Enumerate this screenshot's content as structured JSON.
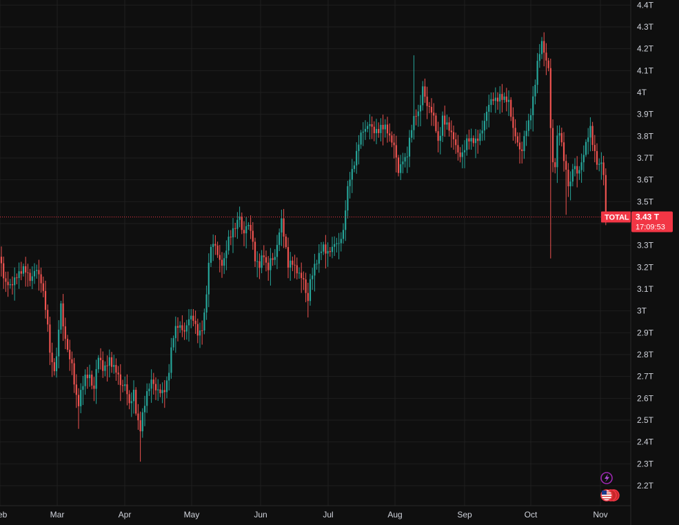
{
  "chart_data": {
    "type": "candlestick",
    "symbol": "TOTAL",
    "last_price_label": "3.43 T",
    "last_price_value": 3.43,
    "countdown": "17:09:53",
    "ylim": [
      2.15,
      4.45
    ],
    "yticks": [
      "2.2T",
      "2.3T",
      "2.4T",
      "2.5T",
      "2.6T",
      "2.7T",
      "2.8T",
      "2.9T",
      "3T",
      "3.1T",
      "3.2T",
      "3.3T",
      "3.4T",
      "3.5T",
      "3.6T",
      "3.7T",
      "3.8T",
      "3.9T",
      "4T",
      "4.1T",
      "4.2T",
      "4.3T",
      "4.4T"
    ],
    "ytick_values": [
      2.2,
      2.3,
      2.4,
      2.5,
      2.6,
      2.7,
      2.8,
      2.9,
      3.0,
      3.1,
      3.2,
      3.3,
      3.4,
      3.5,
      3.6,
      3.7,
      3.8,
      3.9,
      4.0,
      4.1,
      4.2,
      4.3,
      4.4
    ],
    "xticks": [
      "Feb",
      "Mar",
      "Apr",
      "May",
      "Jun",
      "Jul",
      "Aug",
      "Sep",
      "Oct",
      "Nov"
    ],
    "xtick_positions": [
      0.0,
      83.0,
      181.0,
      278.0,
      378.0,
      476.0,
      573.0,
      674.0,
      770.0,
      871.0
    ],
    "grid": true,
    "colors": {
      "up": "#26a69a",
      "down": "#ef5350",
      "grid": "#1f1f1f",
      "axis_text": "#d1d4dc",
      "label_bg": "#f23645",
      "event_purple": "#9c27b0"
    },
    "path": [
      [
        0,
        3.28
      ],
      [
        6,
        3.12
      ],
      [
        14,
        3.1
      ],
      [
        24,
        3.18
      ],
      [
        34,
        3.18
      ],
      [
        44,
        3.14
      ],
      [
        52,
        3.22
      ],
      [
        60,
        3.12
      ],
      [
        66,
        3.0
      ],
      [
        70,
        2.9
      ],
      [
        74,
        2.78
      ],
      [
        79,
        2.75
      ],
      [
        84,
        2.82
      ],
      [
        87,
        3.06
      ],
      [
        92,
        2.9
      ],
      [
        98,
        2.82
      ],
      [
        104,
        2.78
      ],
      [
        109,
        2.65
      ],
      [
        113,
        2.55
      ],
      [
        118,
        2.62
      ],
      [
        124,
        2.7
      ],
      [
        130,
        2.72
      ],
      [
        136,
        2.64
      ],
      [
        142,
        2.78
      ],
      [
        150,
        2.72
      ],
      [
        158,
        2.8
      ],
      [
        164,
        2.75
      ],
      [
        170,
        2.7
      ],
      [
        176,
        2.64
      ],
      [
        182,
        2.68
      ],
      [
        188,
        2.58
      ],
      [
        194,
        2.62
      ],
      [
        198,
        2.5
      ],
      [
        203,
        2.44
      ],
      [
        208,
        2.56
      ],
      [
        213,
        2.64
      ],
      [
        220,
        2.68
      ],
      [
        226,
        2.62
      ],
      [
        232,
        2.63
      ],
      [
        238,
        2.65
      ],
      [
        244,
        2.7
      ],
      [
        250,
        2.85
      ],
      [
        256,
        2.92
      ],
      [
        262,
        2.94
      ],
      [
        268,
        2.92
      ],
      [
        274,
        2.96
      ],
      [
        280,
        2.95
      ],
      [
        286,
        2.9
      ],
      [
        292,
        2.92
      ],
      [
        298,
        3.02
      ],
      [
        302,
        3.18
      ],
      [
        306,
        3.28
      ],
      [
        312,
        3.3
      ],
      [
        318,
        3.25
      ],
      [
        324,
        3.22
      ],
      [
        330,
        3.3
      ],
      [
        336,
        3.34
      ],
      [
        342,
        3.4
      ],
      [
        348,
        3.46
      ],
      [
        352,
        3.34
      ],
      [
        358,
        3.38
      ],
      [
        364,
        3.36
      ],
      [
        370,
        3.25
      ],
      [
        376,
        3.22
      ],
      [
        382,
        3.26
      ],
      [
        388,
        3.16
      ],
      [
        393,
        3.24
      ],
      [
        398,
        3.25
      ],
      [
        404,
        3.35
      ],
      [
        408,
        3.42
      ],
      [
        413,
        3.3
      ],
      [
        418,
        3.2
      ],
      [
        424,
        3.24
      ],
      [
        430,
        3.2
      ],
      [
        436,
        3.15
      ],
      [
        441,
        3.12
      ],
      [
        446,
        3.02
      ],
      [
        450,
        3.15
      ],
      [
        456,
        3.22
      ],
      [
        462,
        3.24
      ],
      [
        468,
        3.28
      ],
      [
        474,
        3.26
      ],
      [
        480,
        3.3
      ],
      [
        486,
        3.32
      ],
      [
        492,
        3.29
      ],
      [
        498,
        3.35
      ],
      [
        502,
        3.5
      ],
      [
        506,
        3.62
      ],
      [
        512,
        3.66
      ],
      [
        518,
        3.72
      ],
      [
        524,
        3.8
      ],
      [
        530,
        3.84
      ],
      [
        536,
        3.88
      ],
      [
        542,
        3.82
      ],
      [
        548,
        3.8
      ],
      [
        554,
        3.84
      ],
      [
        560,
        3.86
      ],
      [
        566,
        3.8
      ],
      [
        572,
        3.74
      ],
      [
        578,
        3.62
      ],
      [
        584,
        3.7
      ],
      [
        590,
        3.72
      ],
      [
        596,
        3.82
      ],
      [
        602,
        3.88
      ],
      [
        608,
        3.9
      ],
      [
        614,
        4.06
      ],
      [
        618,
        3.96
      ],
      [
        624,
        3.92
      ],
      [
        630,
        3.86
      ],
      [
        636,
        3.76
      ],
      [
        642,
        3.9
      ],
      [
        648,
        3.86
      ],
      [
        654,
        3.8
      ],
      [
        660,
        3.76
      ],
      [
        666,
        3.72
      ],
      [
        672,
        3.74
      ],
      [
        678,
        3.78
      ],
      [
        684,
        3.76
      ],
      [
        690,
        3.78
      ],
      [
        696,
        3.82
      ],
      [
        702,
        3.86
      ],
      [
        708,
        3.92
      ],
      [
        714,
        3.96
      ],
      [
        720,
        3.98
      ],
      [
        726,
        4.0
      ],
      [
        732,
        3.96
      ],
      [
        738,
        3.94
      ],
      [
        744,
        3.84
      ],
      [
        750,
        3.8
      ],
      [
        756,
        3.72
      ],
      [
        762,
        3.8
      ],
      [
        768,
        3.86
      ],
      [
        774,
        4.0
      ],
      [
        780,
        4.16
      ],
      [
        786,
        4.22
      ],
      [
        791,
        4.14
      ],
      [
        796,
        4.1
      ],
      [
        800,
        3.74
      ],
      [
        804,
        3.64
      ],
      [
        810,
        3.86
      ],
      [
        815,
        3.74
      ],
      [
        820,
        3.64
      ],
      [
        826,
        3.56
      ],
      [
        832,
        3.7
      ],
      [
        838,
        3.62
      ],
      [
        844,
        3.66
      ],
      [
        850,
        3.76
      ],
      [
        856,
        3.86
      ],
      [
        862,
        3.74
      ],
      [
        868,
        3.64
      ],
      [
        874,
        3.68
      ],
      [
        878,
        3.5
      ],
      [
        881,
        3.43
      ]
    ],
    "wicks": [
      [
        113,
        2.46
      ],
      [
        205,
        2.31
      ],
      [
        446,
        2.97
      ],
      [
        600,
        4.17
      ],
      [
        788,
        4.27
      ],
      [
        800,
        3.24
      ],
      [
        822,
        3.44
      ]
    ]
  }
}
